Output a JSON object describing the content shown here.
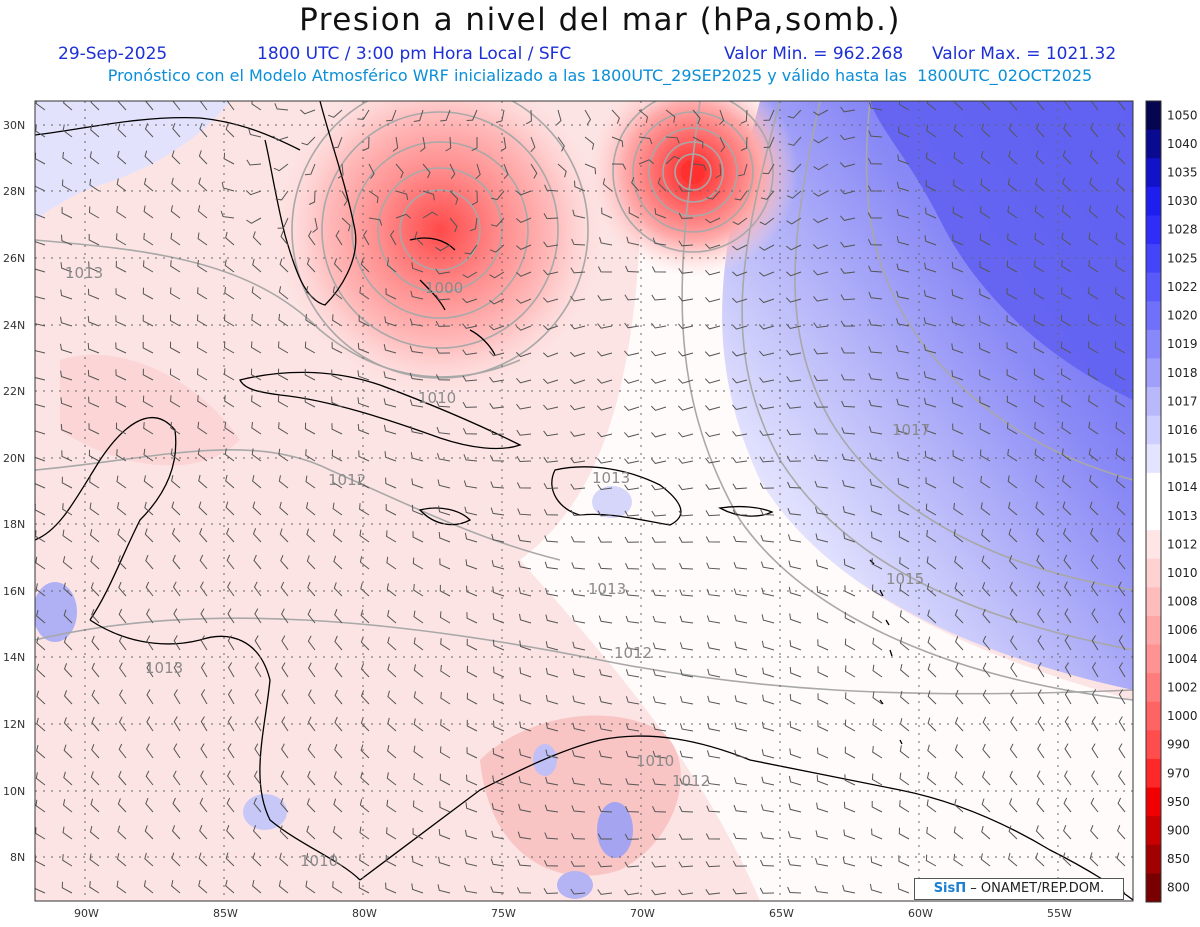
{
  "title": "Presion a nivel del mar (hPa,somb.)",
  "header": {
    "date": "29-Sep-2025",
    "time": "1800 UTC / 3:00 pm Hora Local / SFC",
    "min": "Valor Min. = 962.268",
    "max": "Valor Max. = 1021.32",
    "model_line": "Pronóstico con el Modelo Atmosférico WRF inicializado a las 1800UTC_29SEP2025 y válido hasta las  1800UTC_02OCT2025"
  },
  "axes": {
    "lat_labels": [
      "30N",
      "28N",
      "26N",
      "24N",
      "22N",
      "20N",
      "18N",
      "16N",
      "14N",
      "12N",
      "10N",
      "8N"
    ],
    "lon_labels": [
      "90W",
      "85W",
      "80W",
      "75W",
      "70W",
      "65W",
      "60W",
      "55W"
    ]
  },
  "colorbar": {
    "levels": [
      "1050",
      "1040",
      "1035",
      "1030",
      "1028",
      "1025",
      "1022",
      "1020",
      "1019",
      "1018",
      "1017",
      "1016",
      "1015",
      "1014",
      "1013",
      "1012",
      "1010",
      "1008",
      "1006",
      "1004",
      "1002",
      "1000",
      "990",
      "970",
      "950",
      "900",
      "850",
      "800"
    ],
    "colors": [
      "#060650",
      "#0a0a90",
      "#1212c8",
      "#1e1ef0",
      "#2e2ef8",
      "#4444fa",
      "#5a5afa",
      "#7070fa",
      "#8888fa",
      "#a0a0fa",
      "#b8b8fa",
      "#ceceff",
      "#e4e4ff",
      "#ffffff",
      "#ffffff",
      "#ffe6e6",
      "#ffd2d2",
      "#ffbcbc",
      "#ffa6a6",
      "#ff9292",
      "#ff7c7c",
      "#ff6464",
      "#ff4c4c",
      "#ff2828",
      "#f00000",
      "#c80000",
      "#a00000",
      "#780000"
    ]
  },
  "isobar_labels": [
    "1013",
    "1000",
    "1010",
    "1012",
    "1013",
    "1013",
    "1012",
    "1017",
    "1015",
    "1013",
    "1010",
    "1012",
    "1010"
  ],
  "credit": {
    "brand": "SisΠ",
    "text": "– ONAMET/REP.DOM."
  },
  "colors": {
    "low_center": "#ff3b3b",
    "high_region": "#5c5cf0",
    "land": "#000000"
  }
}
